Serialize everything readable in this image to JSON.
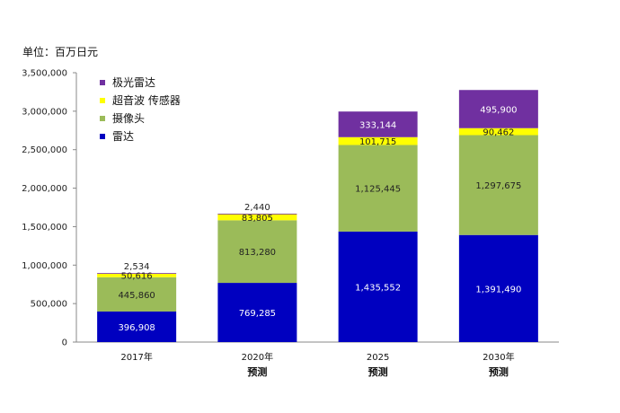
{
  "chart_data": {
    "type": "bar",
    "stacked": true,
    "unit_label": "单位：百万日元",
    "categories": [
      "2017年",
      "2020年",
      "2025",
      "2030年"
    ],
    "category_sublabels": [
      "",
      "预测",
      "预测",
      "预测"
    ],
    "series": [
      {
        "name": "雷达",
        "values": [
          396908,
          769285,
          1435552,
          1391490
        ],
        "color": "#0000c0",
        "value_labels": [
          "396,908",
          "769,285",
          "1,435,552",
          "1,391,490"
        ],
        "label_color": "#ffffff"
      },
      {
        "name": "摄像头",
        "values": [
          445860,
          813280,
          1125445,
          1297675
        ],
        "color": "#9bbb59",
        "value_labels": [
          "445,860",
          "813,280",
          "1,125,445",
          "1,297,675"
        ],
        "label_color": "#222222"
      },
      {
        "name": "超音波 传感器",
        "values": [
          50616,
          83805,
          101715,
          90462
        ],
        "color": "#ffff00",
        "value_labels": [
          "50,616",
          "83,805",
          "101,715",
          "90,462"
        ],
        "label_color": "#222222"
      },
      {
        "name": "极光雷达",
        "values": [
          2534,
          2440,
          333144,
          495900
        ],
        "color": "#7030a0",
        "value_labels": [
          "2,534",
          "2,440",
          "333,144",
          "495,900"
        ],
        "label_color": "#ffffff"
      }
    ],
    "legend_order": [
      3,
      2,
      1,
      0
    ],
    "legend_position": "top-left",
    "ylim": [
      0,
      3500000
    ],
    "yticks": [
      0,
      500000,
      1000000,
      1500000,
      2000000,
      2500000,
      3000000,
      3500000
    ],
    "ytick_labels": [
      "0",
      "500,000",
      "1,000,000",
      "1,500,000",
      "2,000,000",
      "2,500,000",
      "3,000,000",
      "3,500,000"
    ],
    "grid": false
  }
}
